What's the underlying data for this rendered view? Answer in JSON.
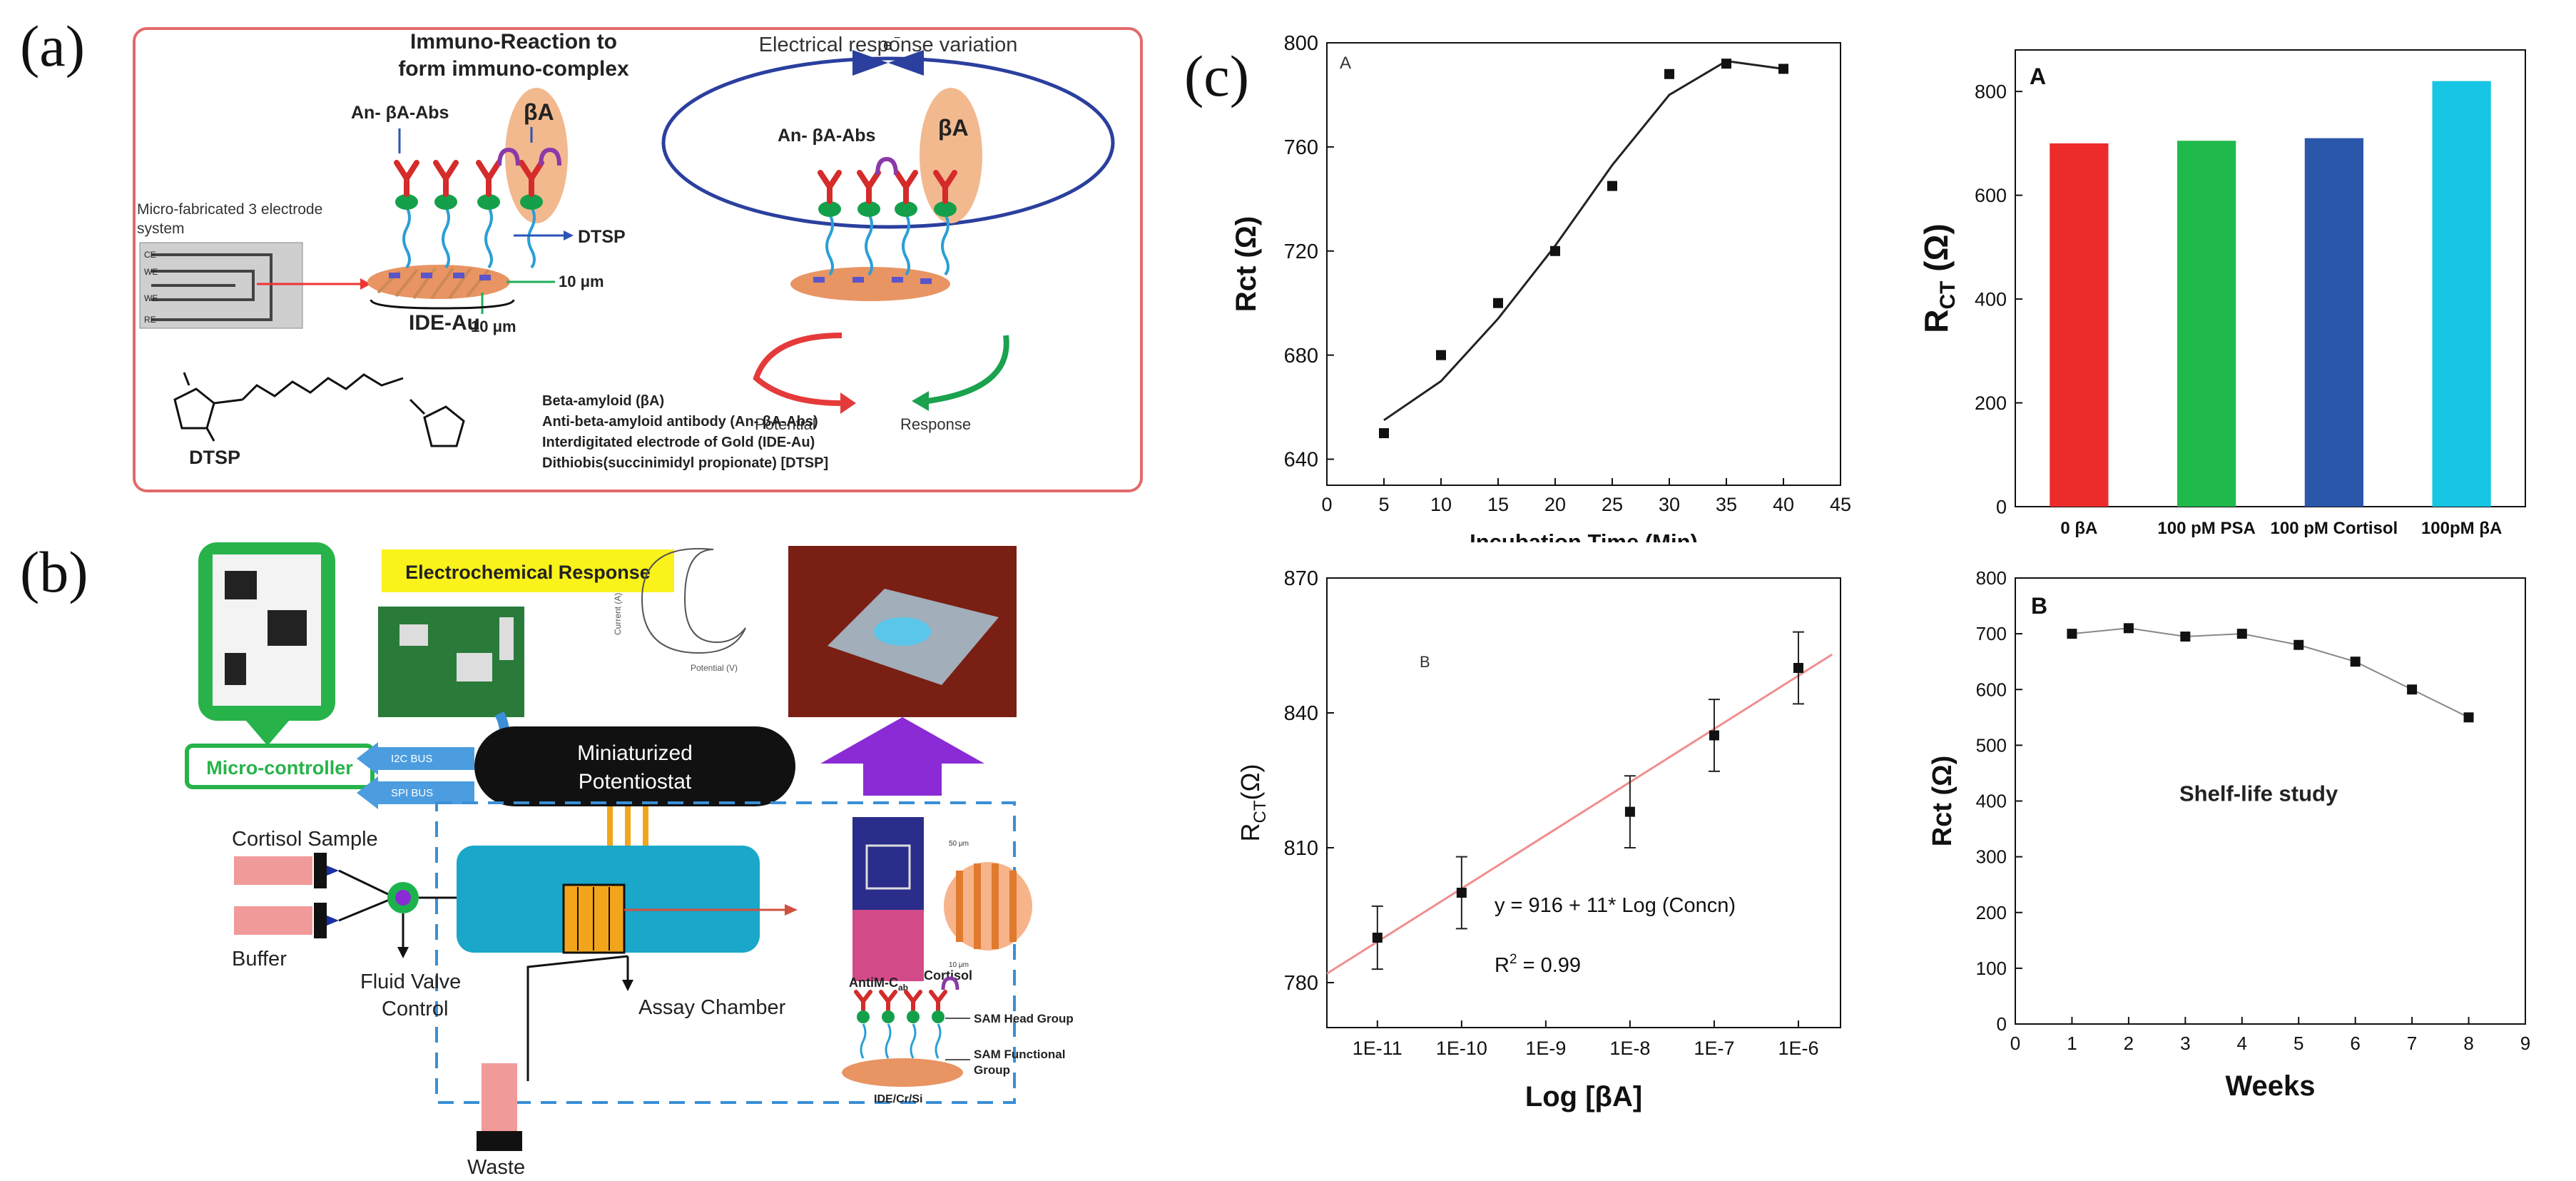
{
  "panel_a": {
    "letter": "(a)",
    "title_immuno": [
      "Immuno-Reaction to",
      "form immuno-complex"
    ],
    "title_electrical": "Electrical response variation",
    "electron": "e",
    "micro_fab": [
      "Micro-fabricated 3 electrode",
      "system"
    ],
    "electrode_labels": [
      "CE",
      "WE",
      "WE",
      "RE"
    ],
    "anti_label_left": "An- βA-Abs",
    "ba_left": "βA",
    "anti_label_right": "An- βA-Abs",
    "ba_right": "βA",
    "dtsp_arrow": "DTSP",
    "dim_10um_a": "10 μm",
    "dim_10um_b": "10 μm",
    "ide_au": "IDE-Au",
    "potential": "Potential",
    "response": "Response",
    "dtsp_mol": "DTSP",
    "legend": [
      "Beta-amyloid (βA)",
      "Anti-beta-amyloid antibody (An- βA-Abs)",
      "Interdigitated electrode of Gold (IDE-Au)",
      "Dithiobis(succinimidyl propionate) [DTSP]"
    ]
  },
  "panel_b": {
    "letter": "(b)",
    "electrochem": "Electrochemical Response",
    "current_axis": "Current (A)",
    "potential_axis": "Potential (V)",
    "micro_controller": "Micro-controller",
    "i2c": "I2C BUS",
    "spi": "SPI BUS",
    "potentiostat": [
      "Miniaturized",
      "Potentiostat"
    ],
    "cortisol_sample": "Cortisol Sample",
    "buffer": "Buffer",
    "fluid_valve": [
      "Fluid Valve",
      "Control"
    ],
    "assay_chamber": "Assay Chamber",
    "waste": "Waste",
    "anti_m": "AntiM-C",
    "anti_m_sub": "ab",
    "cortisol": "Cortisol",
    "sam_head": "SAM Head Group",
    "sam_functional": [
      "SAM Functional",
      "Group"
    ],
    "ide_cr_si": "IDE/Cr/Si",
    "dim_50um": "50 μm",
    "dim_10um": "10 μm"
  },
  "panel_c": {
    "letter": "(c)"
  },
  "chart_data": [
    {
      "id": "c-top-left",
      "type": "scatter",
      "panel_label": "A",
      "title": "",
      "xlabel": "Incubation Time (Min)",
      "ylabel": "Rct (Ω)",
      "x": [
        5,
        10,
        15,
        20,
        25,
        30,
        35,
        40
      ],
      "y": [
        650,
        680,
        700,
        720,
        745,
        788,
        792,
        790
      ],
      "fit_curve": {
        "x": [
          5,
          10,
          15,
          20,
          25,
          30,
          35,
          40
        ],
        "y": [
          655,
          670,
          694,
          722,
          753,
          780,
          793,
          790
        ]
      },
      "xlim": [
        0,
        45
      ],
      "ylim": [
        630,
        800
      ],
      "xticks": [
        "0",
        "5",
        "10",
        "15",
        "20",
        "25",
        "30",
        "35",
        "40",
        "45"
      ],
      "yticks": [
        "640",
        "680",
        "720",
        "760",
        "800"
      ]
    },
    {
      "id": "c-top-right",
      "type": "bar",
      "panel_label": "A",
      "xlabel": "",
      "ylabel": "R",
      "ylabel_sub": "CT",
      "ylabel_unit": " (Ω)",
      "categories": [
        "0 βA",
        "100 pM PSA",
        "100 pM Cortisol",
        "100pM βA"
      ],
      "values": [
        700,
        705,
        710,
        820
      ],
      "colors": [
        "#ee2b2b",
        "#1fba4b",
        "#2a57a9",
        "#17c5e4"
      ],
      "ylim": [
        0,
        880
      ],
      "yticks": [
        "0",
        "200",
        "400",
        "600",
        "800"
      ]
    },
    {
      "id": "c-bottom-left",
      "type": "scatter",
      "panel_label": "B",
      "xlabel": "Log [βA]",
      "ylabel": "R",
      "ylabel_sub": "CT",
      "ylabel_unit": "(Ω)",
      "x_log": [
        -11,
        -10,
        -9,
        -8,
        -7,
        -6
      ],
      "x_points_log": [
        -11,
        -10,
        -8,
        -7,
        -6
      ],
      "y": [
        790,
        800,
        818,
        835,
        850
      ],
      "y_err": [
        7,
        8,
        8,
        8,
        8
      ],
      "fit_line": {
        "x_log": [
          -11.6,
          -5.6
        ],
        "y": [
          782,
          853
        ]
      },
      "equation": "y = 916 + 11* Log (Concn)",
      "r2": "R",
      "r2_sup": "2",
      "r2_val": " = 0.99",
      "xlim_log": [
        -11.6,
        -5.5
      ],
      "ylim": [
        770,
        870
      ],
      "xticks": [
        "1E-11",
        "1E-10",
        "1E-9",
        "1E-8",
        "1E-7",
        "1E-6"
      ],
      "yticks": [
        "780",
        "810",
        "840",
        "870"
      ]
    },
    {
      "id": "c-bottom-right",
      "type": "line",
      "panel_label": "B",
      "xlabel": "Weeks",
      "ylabel": "Rct (Ω)",
      "annotation": "Shelf-life study",
      "x": [
        1,
        2,
        3,
        4,
        5,
        6,
        7,
        8
      ],
      "y": [
        700,
        710,
        695,
        700,
        680,
        650,
        600,
        550
      ],
      "xlim": [
        0,
        9
      ],
      "ylim": [
        0,
        800
      ],
      "xticks": [
        "0",
        "1",
        "2",
        "3",
        "4",
        "5",
        "6",
        "7",
        "8",
        "9"
      ],
      "yticks": [
        "0",
        "100",
        "200",
        "300",
        "400",
        "500",
        "600",
        "700",
        "800"
      ]
    }
  ]
}
